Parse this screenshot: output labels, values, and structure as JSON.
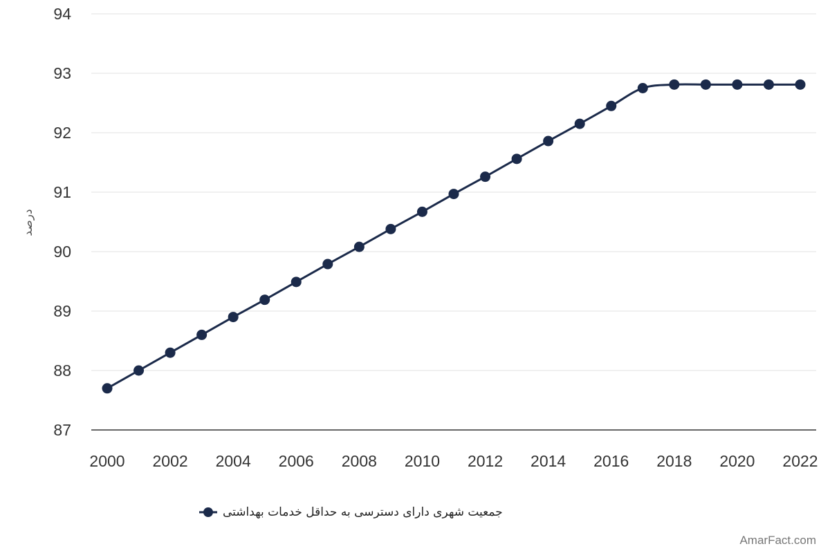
{
  "colors": {
    "series": "#1b2a4a",
    "grid": "#e2e2e2",
    "axis": "#333333"
  },
  "credit": "AmarFact.com",
  "chart_data": {
    "type": "line",
    "title": "",
    "xlabel": "",
    "ylabel": "درصد",
    "ylim": [
      87,
      94
    ],
    "xlim": [
      2000,
      2022
    ],
    "yticks": [
      87,
      88,
      89,
      90,
      91,
      92,
      93,
      94
    ],
    "xticks": [
      2000,
      2002,
      2004,
      2006,
      2008,
      2010,
      2012,
      2014,
      2016,
      2018,
      2020,
      2022
    ],
    "grid": true,
    "legend_position": "bottom",
    "x": [
      2000,
      2001,
      2002,
      2003,
      2004,
      2005,
      2006,
      2007,
      2008,
      2009,
      2010,
      2011,
      2012,
      2013,
      2014,
      2015,
      2016,
      2017,
      2018,
      2019,
      2020,
      2021,
      2022
    ],
    "series": [
      {
        "name": "جمعیت شهری دارای دسترسی به حداقل خدمات بهداشتی",
        "values": [
          87.7,
          88.0,
          88.3,
          88.6,
          88.9,
          89.19,
          89.49,
          89.79,
          90.08,
          90.38,
          90.67,
          90.97,
          91.26,
          91.56,
          91.86,
          92.15,
          92.45,
          92.75,
          92.81,
          92.81,
          92.81,
          92.81,
          92.81
        ]
      }
    ]
  }
}
